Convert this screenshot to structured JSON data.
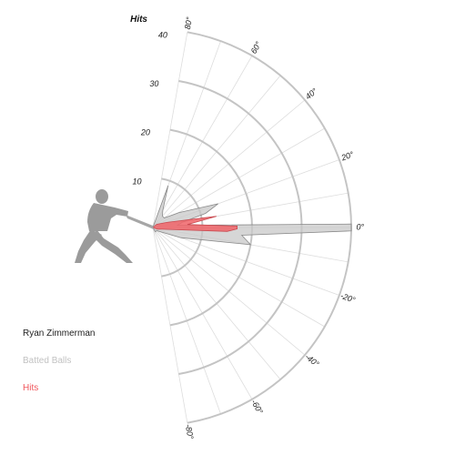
{
  "chart_data": {
    "type": "radar",
    "subtype": "polar launch-angle plot (semicircular, angles -80° to 80°)",
    "radial_axis_label": "Hits",
    "radial_ticks": [
      10,
      20,
      30,
      40
    ],
    "radial_range": [
      0,
      40
    ],
    "angle_ticks": [
      80,
      60,
      40,
      20,
      0,
      -20,
      -40,
      -60,
      -80
    ],
    "angle_tick_labels": [
      "80°",
      "60°",
      "40°",
      "20°",
      "0°",
      "-20°",
      "-40°",
      "-60°",
      "-80°"
    ],
    "angle_range": [
      -80,
      80
    ],
    "grid": true,
    "player": "Ryan Zimmerman",
    "series": [
      {
        "name": "Batted Balls",
        "color": "#c8c8c8",
        "points": [
          {
            "angle": 70,
            "value": 9
          },
          {
            "angle": 60,
            "value": 4
          },
          {
            "angle": 50,
            "value": 3
          },
          {
            "angle": 40,
            "value": 3
          },
          {
            "angle": 30,
            "value": 6
          },
          {
            "angle": 20,
            "value": 14
          },
          {
            "angle": 15,
            "value": 11
          },
          {
            "angle": 10,
            "value": 6
          },
          {
            "angle": 5,
            "value": 5
          },
          {
            "angle": 1,
            "value": 40
          },
          {
            "angle": -1,
            "value": 40
          },
          {
            "angle": -5,
            "value": 18
          },
          {
            "angle": -10,
            "value": 20
          },
          {
            "angle": -20,
            "value": 6
          },
          {
            "angle": -40,
            "value": 1
          },
          {
            "angle": -60,
            "value": 1
          }
        ]
      },
      {
        "name": "Hits",
        "color": "#f0575c",
        "points": [
          {
            "angle": 40,
            "value": 1
          },
          {
            "angle": 20,
            "value": 3
          },
          {
            "angle": 10,
            "value": 13
          },
          {
            "angle": 5,
            "value": 7
          },
          {
            "angle": 1,
            "value": 17
          },
          {
            "angle": -1,
            "value": 17
          },
          {
            "angle": -3,
            "value": 15
          },
          {
            "angle": -10,
            "value": 2
          },
          {
            "angle": -20,
            "value": 1
          }
        ]
      }
    ]
  }
}
